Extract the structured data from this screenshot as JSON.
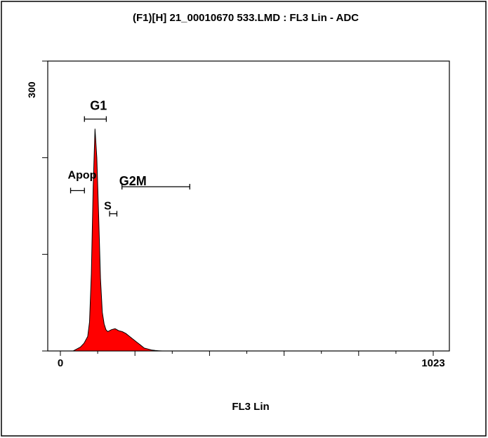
{
  "window": {
    "title": "(F1)[H] 21_00010670 533.LMD : FL3 Lin - ADC"
  },
  "chart_data": {
    "type": "area",
    "title": "(F1)[H] 21_00010670 533.LMD : FL3 Lin - ADC",
    "xlabel": "FL3 Lin",
    "ylabel": "",
    "xlim": [
      0,
      1023
    ],
    "ylim": [
      0,
      300
    ],
    "x_tick_labels": [
      "0",
      "1023"
    ],
    "y_tick_labels": [
      "300"
    ],
    "series_color": "#ff0000",
    "series": [
      {
        "x": [
          35,
          45,
          55,
          65,
          75,
          80,
          85,
          90,
          95,
          100,
          105,
          110,
          115,
          120,
          125,
          130,
          140,
          150,
          160,
          170,
          180,
          190,
          200,
          210,
          220,
          230,
          240,
          250,
          260,
          270,
          280
        ],
        "values": [
          0,
          2,
          4,
          8,
          15,
          30,
          80,
          170,
          230,
          200,
          140,
          75,
          40,
          28,
          22,
          20,
          22,
          23,
          21,
          20,
          18,
          15,
          12,
          9,
          6,
          3,
          2,
          1,
          0.5,
          0.2,
          0
        ]
      }
    ],
    "gates": [
      {
        "name": "G1",
        "range": [
          66,
          126
        ]
      },
      {
        "name": "Apop",
        "range": [
          28,
          66
        ]
      },
      {
        "name": "G2M",
        "range": [
          169,
          355
        ]
      },
      {
        "name": "S",
        "range": [
          135,
          155
        ]
      }
    ]
  }
}
